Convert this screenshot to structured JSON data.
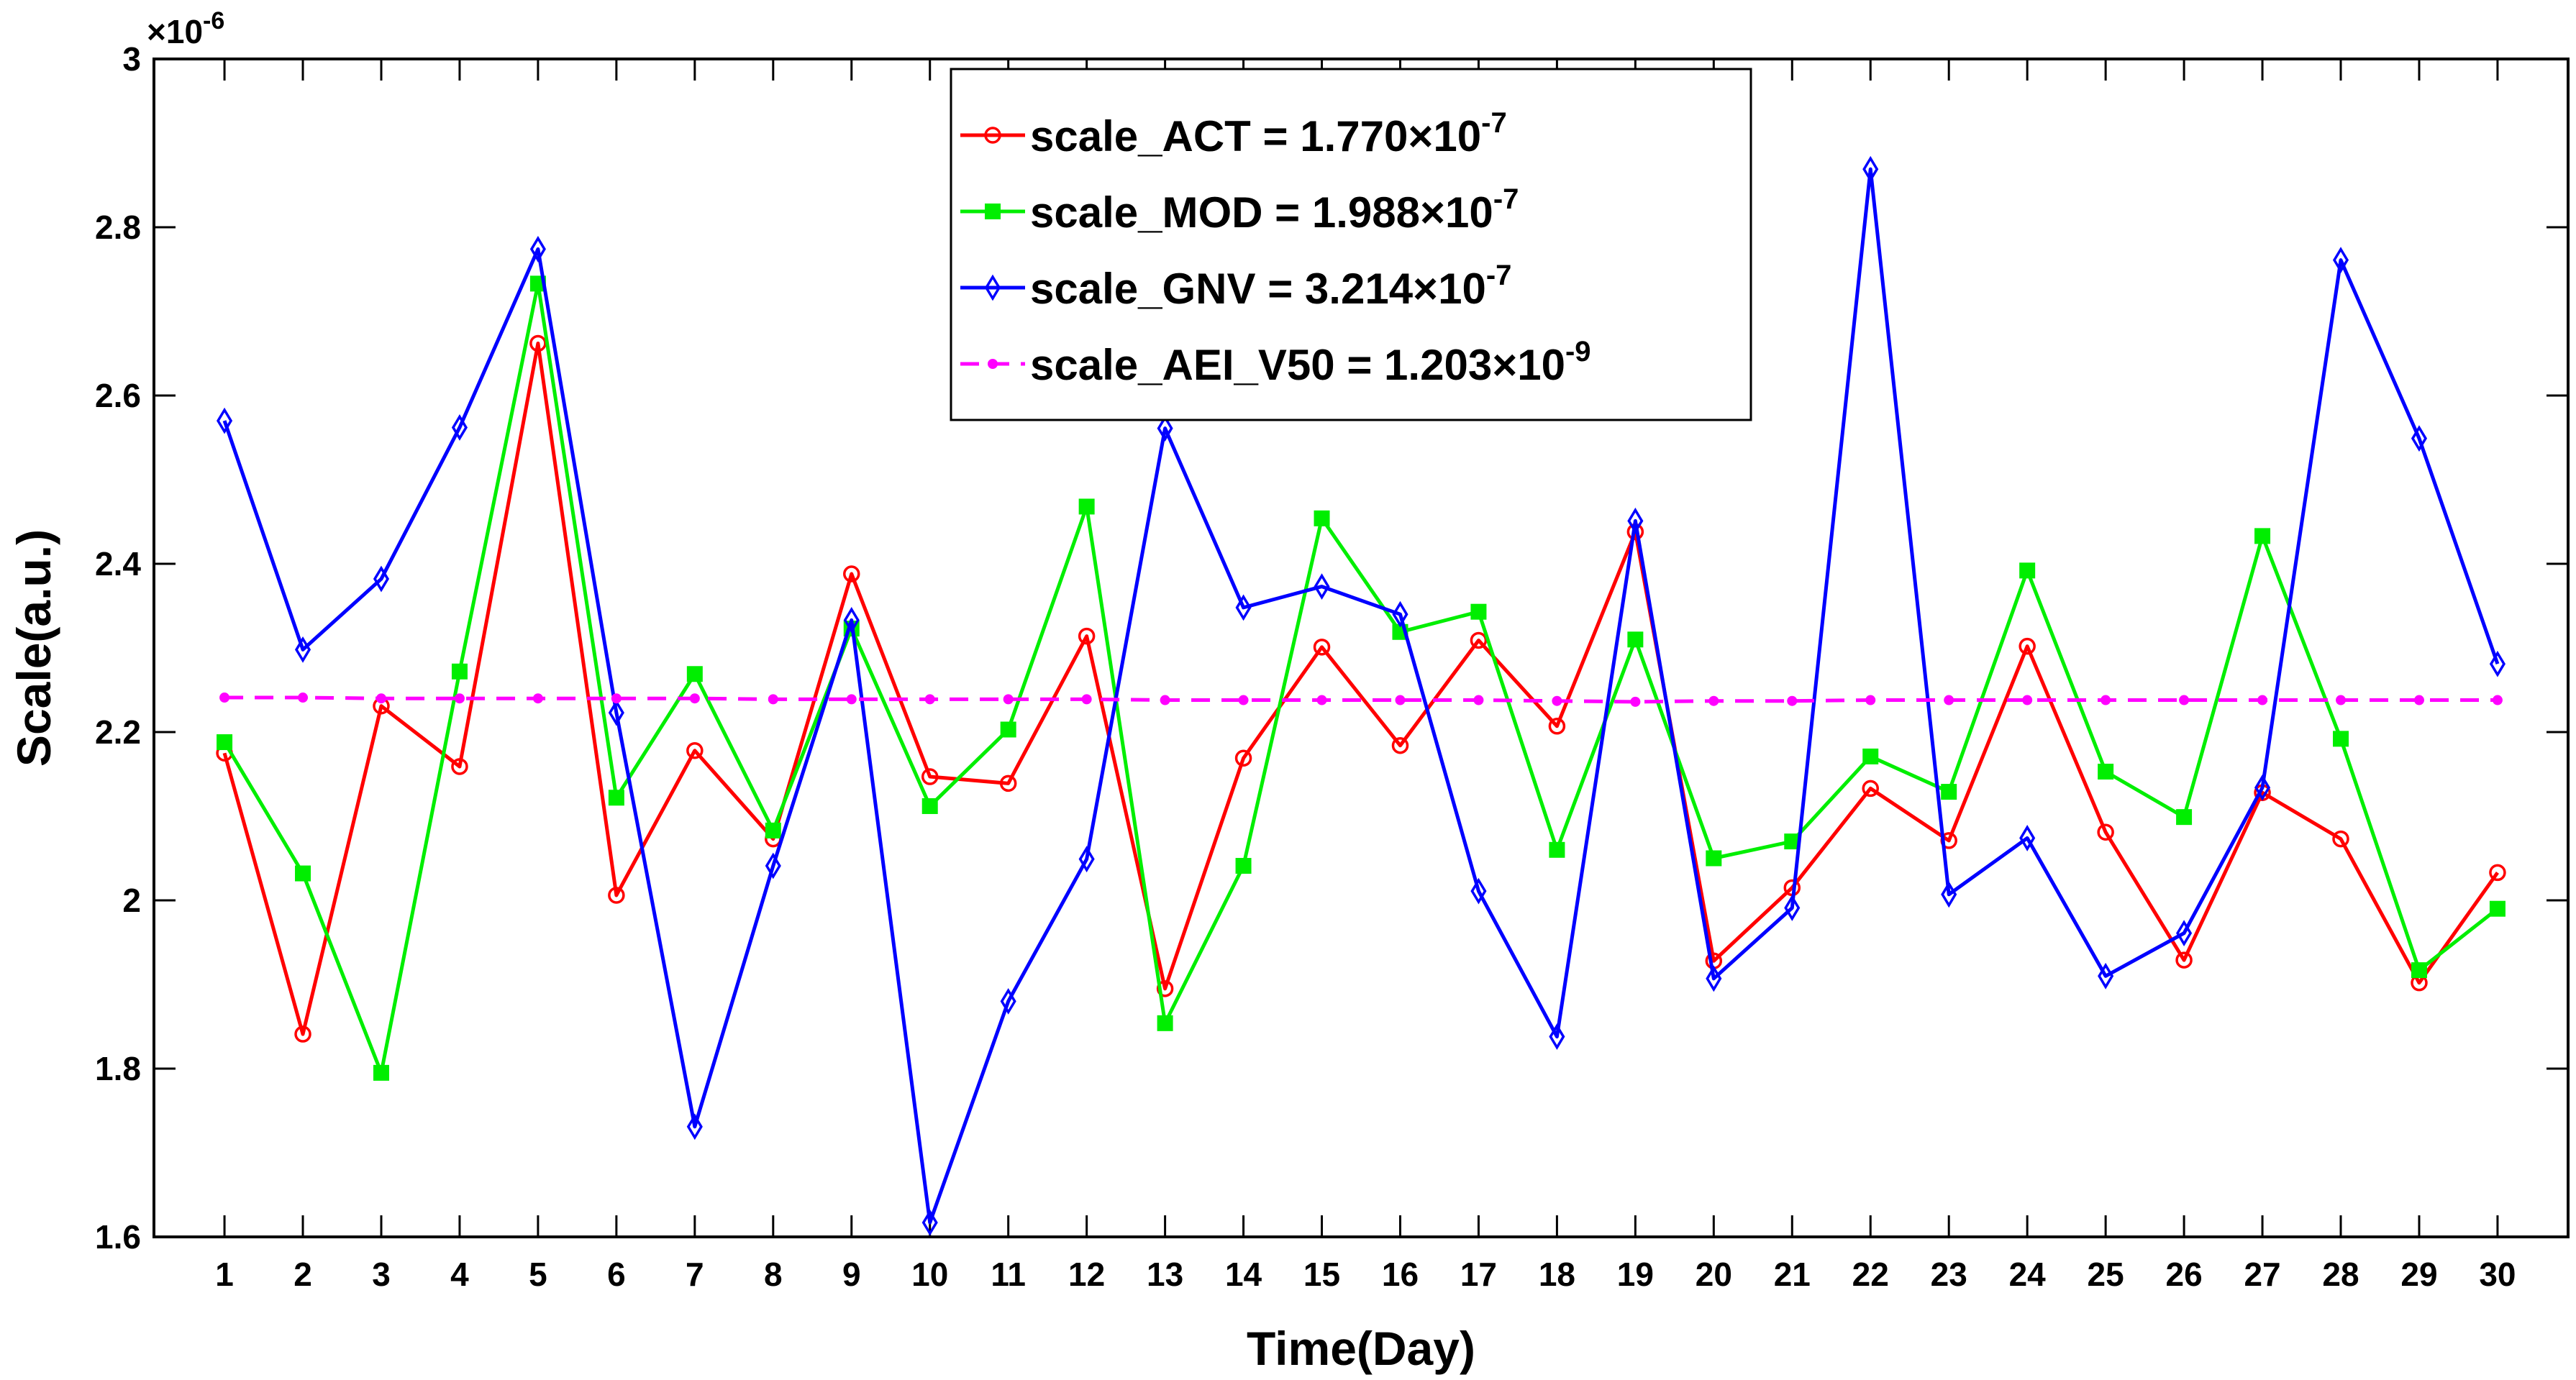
{
  "chart_data": {
    "type": "line",
    "title": "",
    "xlabel": "Time(Day)",
    "ylabel": "Scale(a.u.)",
    "y_exponent_label": "×10",
    "y_exponent": "-6",
    "x": [
      1,
      2,
      3,
      4,
      5,
      6,
      7,
      8,
      9,
      10,
      11,
      12,
      13,
      14,
      15,
      16,
      17,
      18,
      19,
      20,
      21,
      22,
      23,
      24,
      25,
      26,
      27,
      28,
      29,
      30
    ],
    "xlim": [
      0.1,
      30.9
    ],
    "ylim": [
      1.6,
      3.0
    ],
    "yticks": [
      1.6,
      1.8,
      2,
      2.2,
      2.4,
      2.6,
      2.8,
      3
    ],
    "ytick_labels": [
      "1.6",
      "1.8",
      "2",
      "2.2",
      "2.4",
      "2.6",
      "2.8",
      "3"
    ],
    "legend_position": "top-center",
    "series": [
      {
        "name": "scale_ACT",
        "legend_label": "scale_ACT = 1.770×10",
        "legend_exp": "-7",
        "color": "#ff0000",
        "marker": "circle",
        "line_style": "solid",
        "values": [
          2.175,
          1.841,
          2.231,
          2.159,
          2.662,
          2.006,
          2.178,
          2.073,
          2.388,
          2.147,
          2.139,
          2.314,
          1.895,
          2.169,
          2.301,
          2.184,
          2.309,
          2.207,
          2.438,
          1.928,
          2.015,
          2.133,
          2.071,
          2.302,
          2.081,
          1.929,
          2.128,
          2.073,
          1.902,
          2.033
        ]
      },
      {
        "name": "scale_MOD",
        "legend_label": "scale_MOD =  1.988×10",
        "legend_exp": "-7",
        "color": "#00ee00",
        "marker": "square",
        "line_style": "solid",
        "values": [
          2.188,
          2.032,
          1.795,
          2.272,
          2.733,
          2.122,
          2.269,
          2.083,
          2.323,
          2.112,
          2.203,
          2.468,
          1.854,
          2.041,
          2.454,
          2.319,
          2.343,
          2.06,
          2.31,
          2.05,
          2.07,
          2.171,
          2.129,
          2.392,
          2.153,
          2.099,
          2.433,
          2.192,
          1.917,
          1.99
        ]
      },
      {
        "name": "scale_GNV",
        "legend_label": "scale_GNV = 3.214×10",
        "legend_exp": "-7",
        "color": "#0000ff",
        "marker": "diamond",
        "line_style": "solid",
        "values": [
          2.57,
          2.298,
          2.382,
          2.562,
          2.774,
          2.223,
          1.731,
          2.041,
          2.333,
          1.617,
          1.88,
          2.049,
          2.561,
          2.348,
          2.373,
          2.34,
          2.011,
          1.838,
          2.451,
          1.907,
          1.991,
          2.869,
          2.007,
          2.074,
          1.91,
          1.961,
          2.134,
          2.761,
          2.549,
          2.281
        ]
      },
      {
        "name": "scale_AEI_V50",
        "legend_label": "scale_AEI_V50 = 1.203×10",
        "legend_exp": "-9",
        "color": "#ff00ff",
        "marker": "dot",
        "line_style": "dashed",
        "values": [
          2.241,
          2.241,
          2.24,
          2.24,
          2.24,
          2.24,
          2.24,
          2.239,
          2.239,
          2.239,
          2.239,
          2.239,
          2.238,
          2.238,
          2.238,
          2.238,
          2.238,
          2.237,
          2.236,
          2.237,
          2.237,
          2.238,
          2.238,
          2.238,
          2.238,
          2.238,
          2.238,
          2.238,
          2.238,
          2.238
        ]
      }
    ]
  }
}
